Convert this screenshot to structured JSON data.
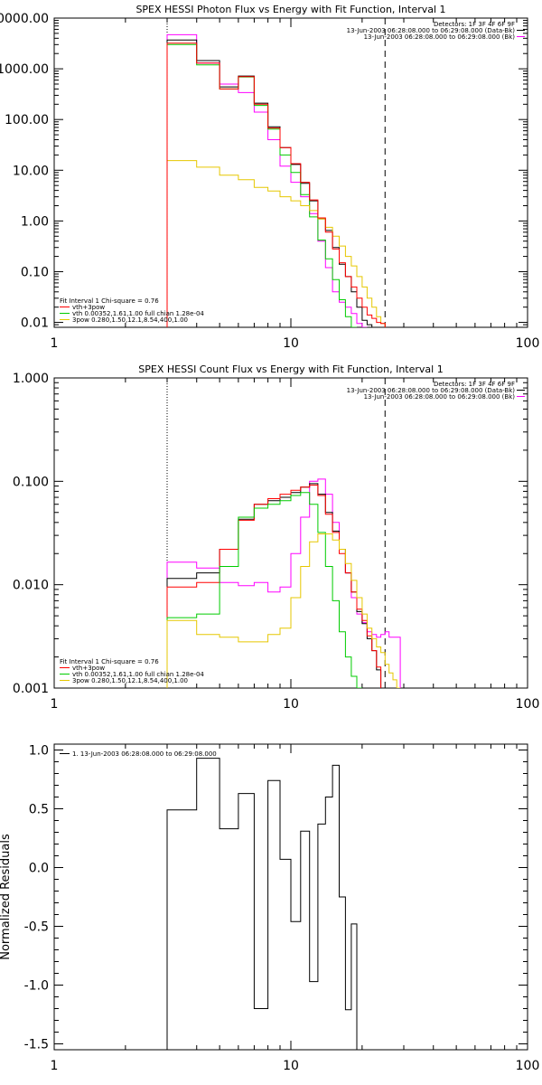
{
  "chart_data": [
    {
      "type": "line",
      "title": "SPEX HESSI Photon Flux vs Energy with Fit Function, Interval 1",
      "xscale": "log",
      "yscale": "log",
      "xlim": [
        1,
        100
      ],
      "ylim": [
        0.008,
        10000
      ],
      "xticks": [
        1,
        10,
        100
      ],
      "xtick_labels": [
        "1",
        "10",
        "100"
      ],
      "yticks": [
        0.01,
        0.1,
        1,
        10,
        100,
        1000,
        10000
      ],
      "ytick_labels": [
        "0.01",
        "0.10",
        "1.00",
        "10.00",
        "100.00",
        "1000.00",
        "10000.00"
      ],
      "ylabel": "",
      "vlines": [
        {
          "x": 3,
          "style": "dotted"
        },
        {
          "x": 25,
          "style": "dashed"
        }
      ],
      "edges": [
        3,
        4,
        5,
        6,
        7,
        8,
        9,
        10,
        11,
        12,
        13,
        14,
        15,
        16,
        17,
        18,
        19,
        20,
        21,
        22,
        23,
        24,
        25,
        26,
        27,
        28
      ],
      "info_lines": [
        "Detectors: 1F 3F 4F 6F 9F",
        "13-Jun-2003 06:28:08.000 to 06:29:08.000 (Data-Bk)",
        "13-Jun-2003 06:28:08.000 to 06:29:08.000 (Bk)"
      ],
      "info_colors": [
        "",
        "#000000",
        "#ff00ff"
      ],
      "legend_lines": [
        "Fit Interval 1   Chi-square = 0.76",
        "vth+3pow",
        "vth 0.00352,1.61,1.00  full chian 1.28e-04",
        "3pow 0.280,1.50,12.1,8.54,400,1.00"
      ],
      "legend_colors": [
        "",
        "#ff0000",
        "#00cc00",
        "#e6c700"
      ],
      "series": [
        {
          "color": "#ff00ff",
          "values": [
            4700,
            1300,
            500,
            340,
            140,
            40,
            12,
            5.8,
            3.0,
            1.4,
            0.4,
            0.12,
            0.04,
            0.025,
            0.02,
            0.015,
            0.0095,
            0.008,
            null,
            null,
            null,
            null,
            null,
            null,
            null
          ]
        },
        {
          "color": "#000000",
          "values": [
            3700,
            1450,
            440,
            720,
            210,
            72,
            28,
            13,
            5.5,
            2.5,
            1.1,
            0.65,
            0.3,
            0.14,
            0.08,
            0.04,
            0.02,
            0.011,
            0.009,
            0.008,
            null,
            null,
            null,
            null,
            null
          ]
        },
        {
          "color": "#00cc00",
          "values": [
            3000,
            1200,
            400,
            690,
            190,
            65,
            20,
            9.0,
            3.3,
            1.2,
            0.42,
            0.18,
            0.07,
            0.028,
            0.013,
            0.008,
            null,
            null,
            null,
            null,
            null,
            null,
            null,
            null,
            null
          ]
        },
        {
          "color": "#e6c700",
          "values": [
            15.5,
            11.5,
            8.0,
            6.5,
            4.6,
            3.9,
            3.0,
            2.5,
            2.0,
            1.6,
            1.1,
            0.75,
            0.5,
            0.32,
            0.2,
            0.13,
            0.08,
            0.05,
            0.03,
            0.02,
            0.013,
            0.0095,
            null,
            null,
            null
          ]
        },
        {
          "color": "#ff0000",
          "values": [
            3200,
            1300,
            400,
            700,
            200,
            68,
            28,
            13.5,
            5.8,
            2.6,
            1.15,
            0.6,
            0.28,
            0.15,
            0.08,
            0.05,
            0.03,
            0.02,
            0.014,
            0.012,
            0.01,
            0.0095,
            null,
            null,
            null
          ]
        }
      ]
    },
    {
      "type": "line",
      "title": "SPEX HESSI Count Flux vs Energy with Fit Function, Interval 1",
      "xscale": "log",
      "yscale": "log",
      "xlim": [
        1,
        100
      ],
      "ylim": [
        0.001,
        1.0
      ],
      "xticks": [
        1,
        10,
        100
      ],
      "xtick_labels": [
        "1",
        "10",
        "100"
      ],
      "yticks": [
        0.001,
        0.01,
        0.1,
        1.0
      ],
      "ytick_labels": [
        "0.001",
        "0.010",
        "0.100",
        "1.000"
      ],
      "ylabel": "",
      "vlines": [
        {
          "x": 3,
          "style": "dotted"
        },
        {
          "x": 25,
          "style": "dashed"
        }
      ],
      "edges": [
        3,
        4,
        5,
        6,
        7,
        8,
        9,
        10,
        11,
        12,
        13,
        14,
        15,
        16,
        17,
        18,
        19,
        20,
        21,
        22,
        23,
        24,
        25,
        26,
        27,
        28,
        29
      ],
      "info_lines": [
        "Detectors: 1F 3F 4F 6F 9F",
        "13-Jun-2003 06:28:08.000 to 06:29:08.000 (Data-Bk)",
        "13-Jun-2003 06:28:08.000 to 06:29:08.000 (Bk)"
      ],
      "info_colors": [
        "",
        "#000000",
        "#ff00ff"
      ],
      "legend_lines": [
        "Fit Interval 1   Chi-square = 0.76",
        "vth+3pow",
        "vth 0.00352,1.61,1.00  full chian 1.28e-04",
        "3pow 0.280,1.50,12.1,8.54,400,1.00"
      ],
      "legend_colors": [
        "",
        "#ff0000",
        "#00cc00",
        "#e6c700"
      ],
      "series": [
        {
          "color": "#ff00ff",
          "values": [
            0.0165,
            0.0145,
            0.0105,
            0.0098,
            0.0105,
            0.0085,
            0.0095,
            0.02,
            0.045,
            0.1,
            0.105,
            0.075,
            0.04,
            0.022,
            0.013,
            0.0075,
            0.0052,
            0.0043,
            0.0035,
            0.0033,
            0.0031,
            0.0033,
            0.0035,
            0.0031,
            0.0031,
            0.0031
          ]
        },
        {
          "color": "#000000",
          "values": [
            0.0115,
            0.013,
            0.022,
            0.043,
            0.06,
            0.065,
            0.07,
            0.078,
            0.088,
            0.095,
            0.075,
            0.05,
            0.033,
            0.022,
            0.013,
            0.0085,
            0.0055,
            0.0042,
            0.003,
            0.0023,
            0.0015,
            null,
            null,
            null,
            null,
            null
          ]
        },
        {
          "color": "#ff0000",
          "values": [
            0.0095,
            0.0105,
            0.022,
            0.042,
            0.06,
            0.068,
            0.075,
            0.082,
            0.088,
            0.092,
            0.073,
            0.048,
            0.032,
            0.02,
            0.013,
            0.0085,
            0.0058,
            0.0045,
            0.0032,
            0.0023,
            0.0016,
            null,
            null,
            null,
            null,
            null
          ]
        },
        {
          "color": "#00cc00",
          "values": [
            0.0048,
            0.0052,
            0.015,
            0.045,
            0.055,
            0.06,
            0.065,
            0.073,
            0.078,
            0.06,
            0.032,
            0.015,
            0.007,
            0.0035,
            0.002,
            0.0013,
            0.001,
            null,
            null,
            null,
            null,
            null,
            null,
            null,
            null,
            null
          ]
        },
        {
          "color": "#e6c700",
          "values": [
            0.0045,
            0.0033,
            0.0031,
            0.0028,
            0.0028,
            0.0033,
            0.0038,
            0.0075,
            0.015,
            0.026,
            0.031,
            0.031,
            0.027,
            0.022,
            0.016,
            0.011,
            0.0075,
            0.0052,
            0.0038,
            0.003,
            0.0025,
            0.0022,
            0.0017,
            0.0014,
            0.0012,
            0.001
          ]
        }
      ]
    },
    {
      "type": "line",
      "title": "",
      "xscale": "log",
      "yscale": "linear",
      "xlim": [
        1,
        100
      ],
      "ylim": [
        -1.55,
        1.05
      ],
      "xticks": [
        1,
        10,
        100
      ],
      "xtick_labels": [
        "1",
        "10",
        "100"
      ],
      "yticks": [
        -1.5,
        -1.0,
        -0.5,
        0.0,
        0.5,
        1.0
      ],
      "ytick_labels": [
        "-1.5",
        "-1.0",
        "-0.5",
        "0.0",
        "0.5",
        "1.0"
      ],
      "ylabel": "Normalized Residuals",
      "vlines": [],
      "edges": [
        3,
        4,
        5,
        6,
        7,
        8,
        9,
        10,
        11,
        12,
        13,
        14,
        15,
        16,
        17,
        18,
        19,
        20,
        21,
        22,
        23,
        24,
        25
      ],
      "info_lines": [],
      "info_colors": [],
      "legend_lines": [
        "1. 13-Jun-2003 06:28:08.000 to 06:29:08.000"
      ],
      "legend_colors": [
        "#000000"
      ],
      "series": [
        {
          "color": "#000000",
          "values": [
            0.49,
            0.93,
            0.33,
            0.63,
            -1.2,
            0.74,
            0.07,
            -0.46,
            0.31,
            -0.97,
            0.37,
            0.6,
            0.87,
            -0.25,
            -1.21,
            -0.48
          ]
        }
      ]
    }
  ]
}
